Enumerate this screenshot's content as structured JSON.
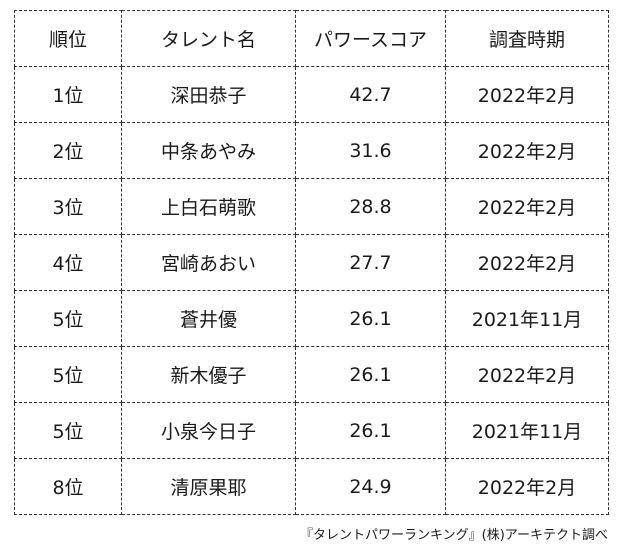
{
  "table": {
    "headers": [
      "順位",
      "タレント名",
      "パワースコア",
      "調査時期"
    ],
    "rows": [
      {
        "rank": "1位",
        "name": "深田恭子",
        "score": "42.7",
        "date": "2022年2月"
      },
      {
        "rank": "2位",
        "name": "中条あやみ",
        "score": "31.6",
        "date": "2022年2月"
      },
      {
        "rank": "3位",
        "name": "上白石萌歌",
        "score": "28.8",
        "date": "2022年2月"
      },
      {
        "rank": "4位",
        "name": "宮崎あおい",
        "score": "27.7",
        "date": "2022年2月"
      },
      {
        "rank": "5位",
        "name": "蒼井優",
        "score": "26.1",
        "date": "2021年11月"
      },
      {
        "rank": "5位",
        "name": "新木優子",
        "score": "26.1",
        "date": "2022年2月"
      },
      {
        "rank": "5位",
        "name": "小泉今日子",
        "score": "26.1",
        "date": "2021年11月"
      },
      {
        "rank": "8位",
        "name": "清原果耶",
        "score": "24.9",
        "date": "2022年2月"
      }
    ]
  },
  "source": "『タレントパワーランキング』(株)アーキテクト調べ"
}
